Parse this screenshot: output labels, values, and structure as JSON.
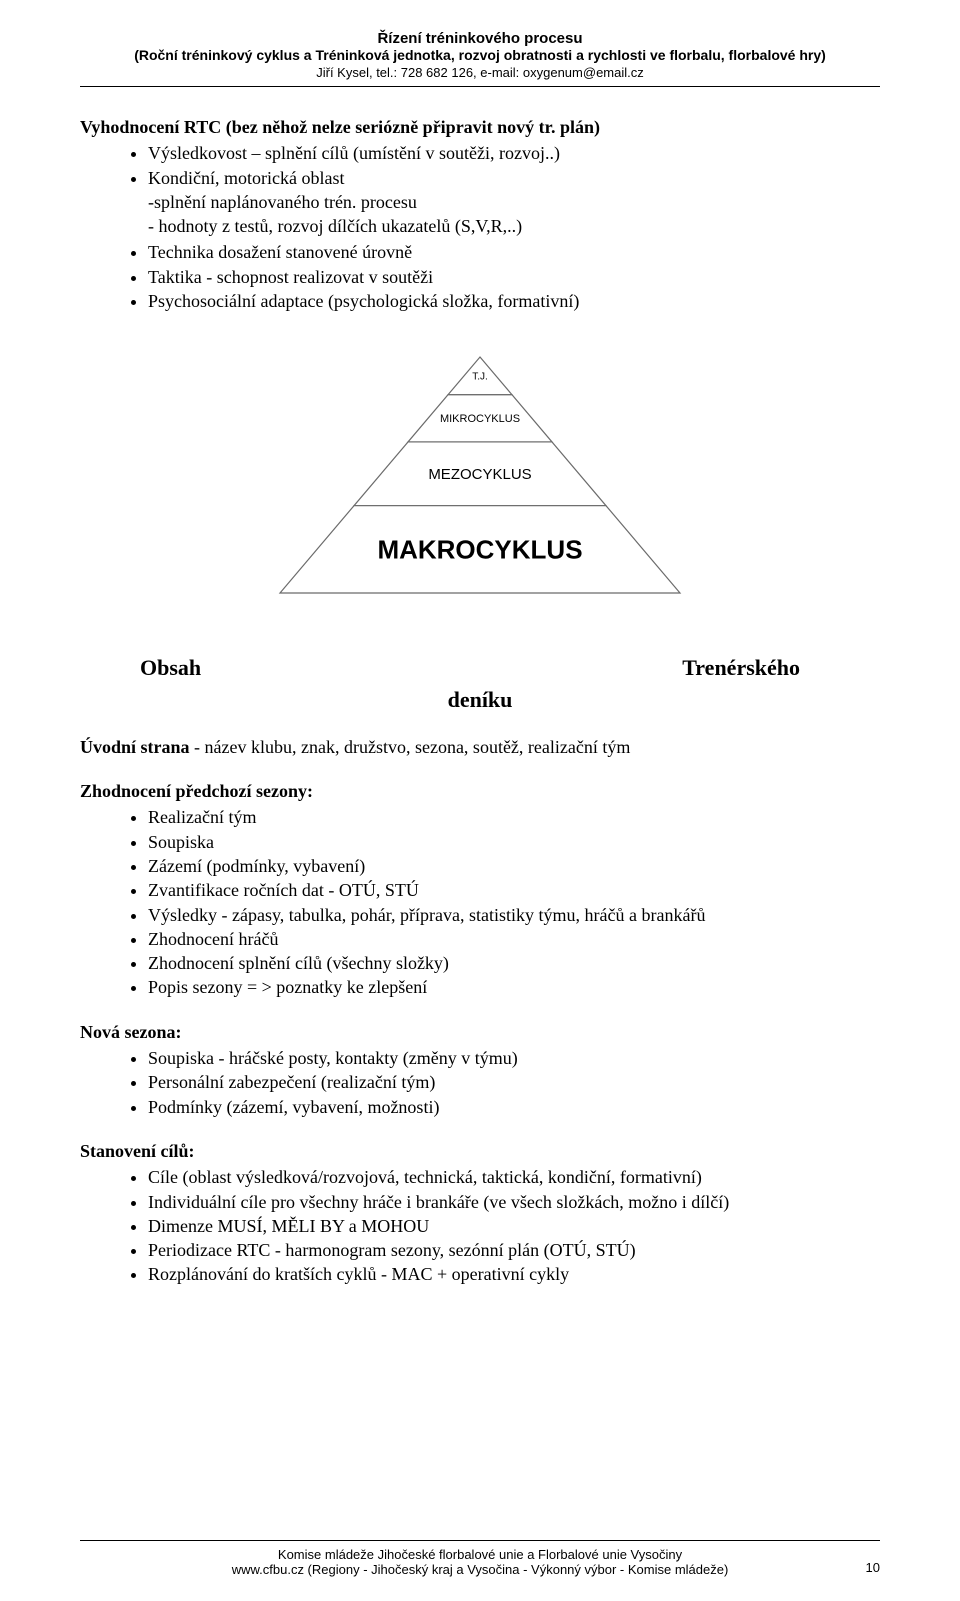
{
  "header": {
    "title": "Řízení tréninkového procesu",
    "subtitle": "(Roční tréninkový cyklus  a Tréninková jednotka,   rozvoj obratnosti a rychlosti ve florbalu, florbalové hry)",
    "contact": "Jiří Kysel, tel.: 728 682 126, e-mail: oxygenum@email.cz"
  },
  "intro": {
    "heading": "Vyhodnocení RTC (bez něhož nelze seriózně připravit nový tr. plán)",
    "bullets": [
      "Výsledkovost – splnění cílů (umístění v soutěži, rozvoj..)",
      "Kondiční, motorická oblast",
      "Technika dosažení stanovené úrovně",
      "Taktika - schopnost realizovat v soutěži",
      "Psychosociální adaptace  (psychologická složka, formativní)"
    ],
    "sub_b2": "-splnění naplánovaného trén. procesu",
    "sub_b2b": "- hodnoty z testů, rozvoj dílčích ukazatelů (S,V,R,..)"
  },
  "pyramid": {
    "type": "tree",
    "levels": [
      {
        "label": "T.J.",
        "font_size": 10
      },
      {
        "label": "MIKROCYKLUS",
        "font_size": 11
      },
      {
        "label": "MEZOCYKLUS",
        "font_size": 15
      },
      {
        "label": "MAKROCYKLUS",
        "font_size": 26
      }
    ],
    "stroke_color": "#6b6b6b",
    "fill_color": "#ffffff",
    "text_color": "#000000",
    "background_color": "#ffffff",
    "font_family": "Arial"
  },
  "obsah": {
    "left": "Obsah",
    "right": "Trenérského",
    "center": "deníku"
  },
  "intro_line": "Úvodní strana",
  "intro_line_rest": " - název klubu, znak, družstvo, sezona, soutěž, realizační tým",
  "sections": [
    {
      "heading": "Zhodnocení předchozí sezony:",
      "items": [
        "Realizační tým",
        "Soupiska",
        "Zázemí (podmínky, vybavení)",
        "Zvantifikace ročních dat - OTÚ, STÚ",
        "Výsledky - zápasy, tabulka, pohár, příprava, statistiky týmu, hráčů a brankářů",
        "Zhodnocení hráčů",
        "Zhodnocení splnění cílů (všechny složky)",
        "Popis sezony = > poznatky ke zlepšení"
      ]
    },
    {
      "heading": "Nová sezona:",
      "items": [
        "Soupiska - hráčské posty, kontakty (změny v týmu)",
        "Personální zabezpečení (realizační tým)",
        "Podmínky (zázemí, vybavení, možnosti)"
      ]
    },
    {
      "heading": "Stanovení cílů:",
      "items": [
        "Cíle (oblast výsledková/rozvojová, technická, taktická, kondiční, formativní)",
        "Individuální cíle pro všechny hráče i brankáře (ve všech složkách, možno i dílčí)",
        "Dimenze MUSÍ, MĚLI BY a MOHOU",
        "Periodizace RTC - harmonogram sezony, sezónní plán (OTÚ, STÚ)",
        "Rozplánování do kratších cyklů - MAC + operativní cykly"
      ]
    }
  ],
  "footer": {
    "line1": "Komise mládeže Jihočeské florbalové unie a Florbalové unie Vysočiny",
    "line2": "www.cfbu.cz (Regiony - Jihočeský kraj a Vysočina - Výkonný výbor - Komise mládeže)"
  },
  "page_number": "10"
}
